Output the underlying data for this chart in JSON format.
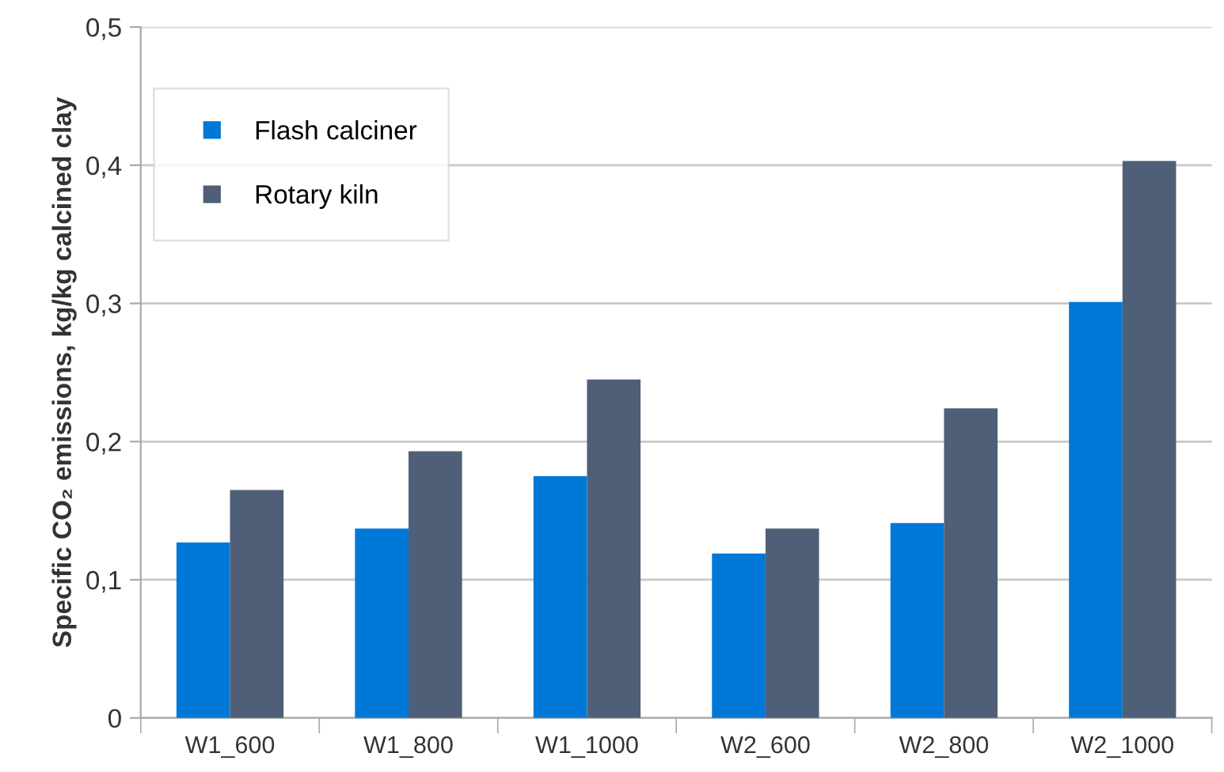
{
  "chart_data": {
    "type": "bar",
    "ylabel": "Specific CO₂ emissions, kg/kg calcined clay",
    "categories": [
      "W1_600",
      "W1_800",
      "W1_1000",
      "W2_600",
      "W2_800",
      "W2_1000"
    ],
    "series": [
      {
        "name": "Flash calciner",
        "color": "#0078d7",
        "values": [
          0.127,
          0.137,
          0.175,
          0.119,
          0.141,
          0.301
        ]
      },
      {
        "name": "Rotary kiln",
        "color": "#505f78",
        "values": [
          0.165,
          0.193,
          0.245,
          0.137,
          0.224,
          0.403
        ]
      }
    ],
    "ylim": [
      0,
      0.5
    ],
    "yticks": [
      {
        "value": 0,
        "label": "0"
      },
      {
        "value": 0.1,
        "label": "0,1"
      },
      {
        "value": 0.2,
        "label": "0,2"
      },
      {
        "value": 0.3,
        "label": "0,3"
      },
      {
        "value": 0.4,
        "label": "0,4"
      },
      {
        "value": 0.5,
        "label": "0,5"
      }
    ],
    "grid": "y",
    "legend": "top left",
    "marker": "square"
  }
}
